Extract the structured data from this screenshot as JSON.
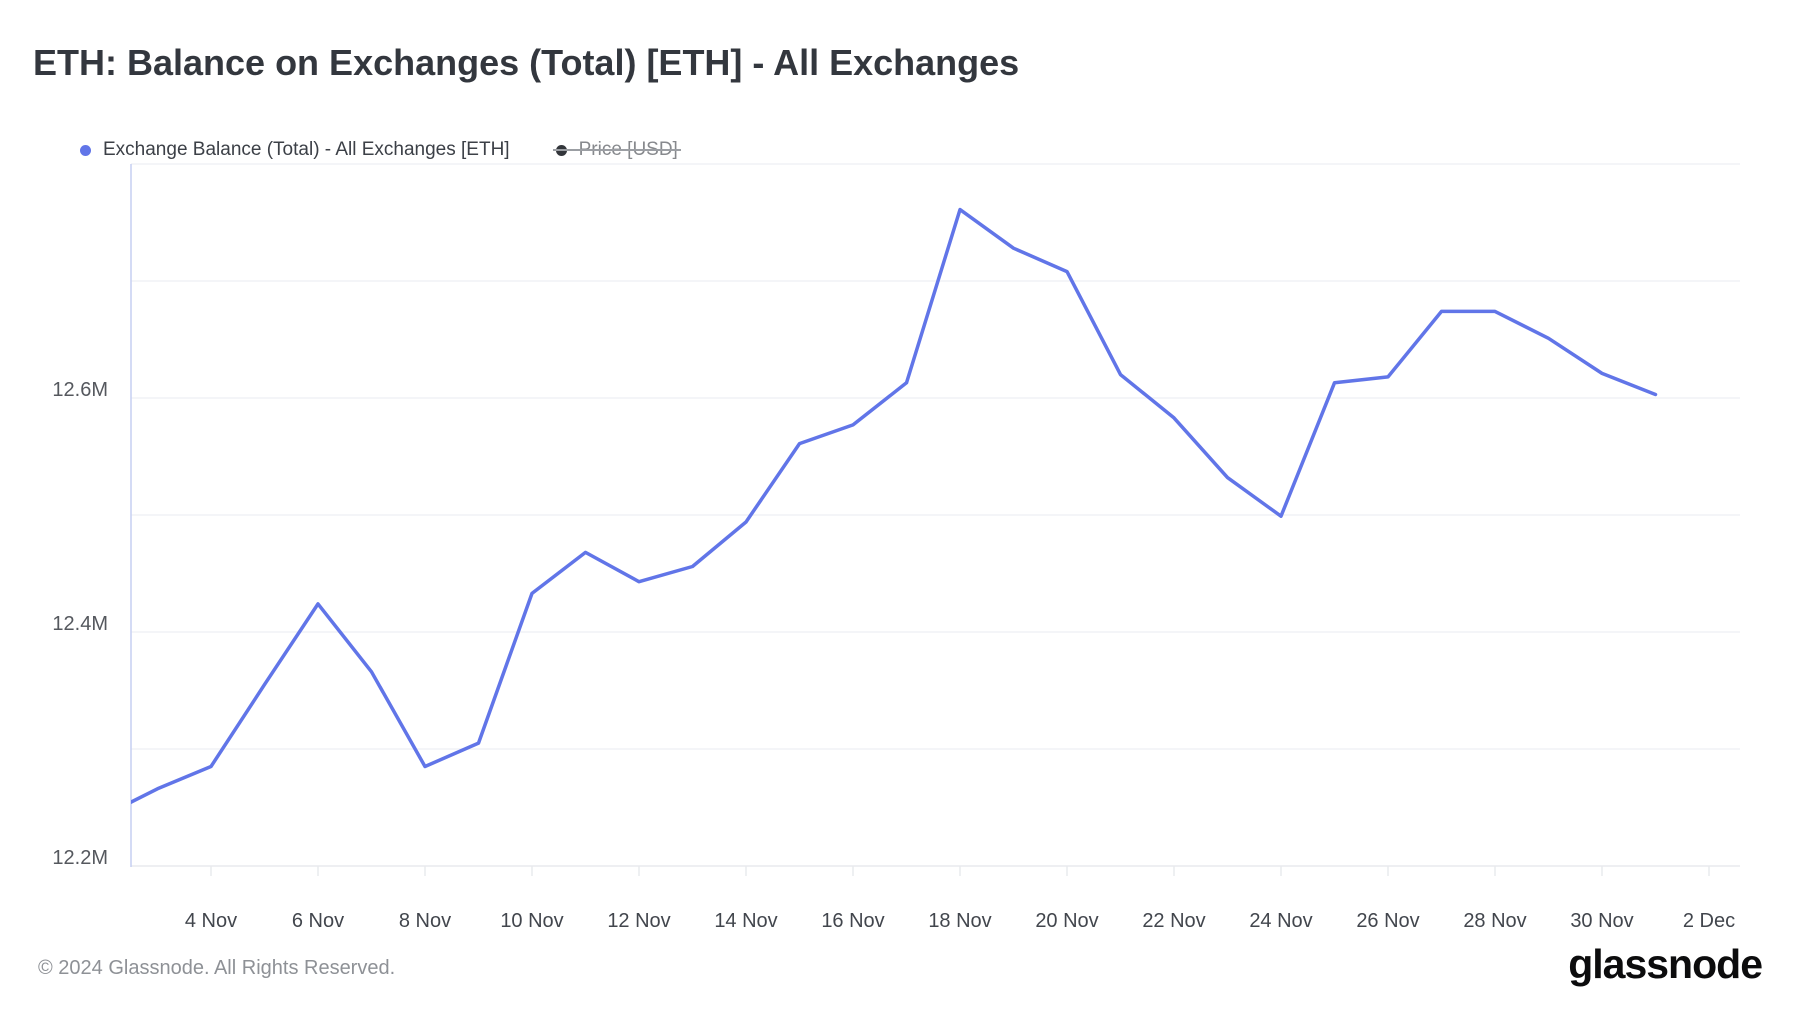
{
  "header": {
    "title": "ETH: Balance on Exchanges (Total) [ETH] - All Exchanges"
  },
  "legend": [
    {
      "label": "Exchange Balance (Total) - All Exchanges [ETH]",
      "color": "#6175e8",
      "disabled": false
    },
    {
      "label": "Price [USD]",
      "color": "#33363b",
      "disabled": true
    }
  ],
  "chart_data": {
    "type": "line",
    "title": "ETH: Balance on Exchanges (Total) [ETH] - All Exchanges",
    "x": [
      "2 Nov",
      "3 Nov",
      "4 Nov",
      "5 Nov",
      "6 Nov",
      "7 Nov",
      "8 Nov",
      "9 Nov",
      "10 Nov",
      "11 Nov",
      "12 Nov",
      "13 Nov",
      "14 Nov",
      "15 Nov",
      "16 Nov",
      "17 Nov",
      "18 Nov",
      "19 Nov",
      "20 Nov",
      "21 Nov",
      "22 Nov",
      "23 Nov",
      "24 Nov",
      "25 Nov",
      "26 Nov",
      "27 Nov",
      "28 Nov",
      "29 Nov",
      "30 Nov",
      "1 Dec"
    ],
    "series": [
      {
        "name": "Exchange Balance (Total) - All Exchanges [ETH]",
        "color": "#6175e8",
        "unit": "M ETH",
        "values": [
          12.243,
          12.266,
          12.285,
          12.355,
          12.424,
          12.366,
          12.285,
          12.305,
          12.433,
          12.468,
          12.443,
          12.456,
          12.494,
          12.561,
          12.577,
          12.613,
          12.761,
          12.728,
          12.708,
          12.62,
          12.583,
          12.532,
          12.499,
          12.613,
          12.618,
          12.674,
          12.674,
          12.651,
          12.621,
          12.603
        ]
      }
    ],
    "hidden_series": [
      "Price [USD]"
    ],
    "ylim": [
      12.2,
      12.8
    ],
    "y_gridline_step": 0.1,
    "y_tick_values": [
      12.2,
      12.4,
      12.6
    ],
    "y_tick_labels": [
      "12.2M",
      "12.4M",
      "12.6M"
    ],
    "x_tick_labels": [
      "4 Nov",
      "6 Nov",
      "8 Nov",
      "10 Nov",
      "12 Nov",
      "14 Nov",
      "16 Nov",
      "18 Nov",
      "20 Nov",
      "22 Nov",
      "24 Nov",
      "26 Nov",
      "28 Nov",
      "30 Nov",
      "2 Dec"
    ],
    "x_tick_day_indices": [
      2,
      4,
      6,
      8,
      10,
      12,
      14,
      16,
      18,
      20,
      22,
      24,
      26,
      28,
      30
    ],
    "grid": "horizontal",
    "legend_position": "top-left"
  },
  "footer": {
    "copyright": "© 2024 Glassnode. All Rights Reserved.",
    "brand": "glassnode"
  }
}
